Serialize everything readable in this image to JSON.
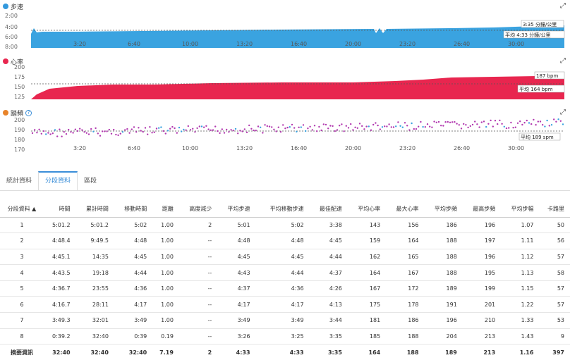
{
  "charts": {
    "pace": {
      "title": "步速",
      "color": "#3399dd",
      "y_ticks": [
        "2:00",
        "4:00",
        "6:00",
        "8:00"
      ],
      "current": "3:35 分鐘/公里",
      "average": "平均 4:33 分鐘/公里"
    },
    "heart_rate": {
      "title": "心率",
      "color": "#e8264f",
      "y_ticks": [
        "200",
        "175",
        "150",
        "125"
      ],
      "current": "187 bpm",
      "average": "平均 164 bpm"
    },
    "cadence": {
      "title": "踏頻",
      "color": "#e8842a",
      "y_ticks": [
        "200",
        "190",
        "180",
        "170"
      ],
      "average": "平均 189 spm"
    },
    "x_ticks": [
      "3:20",
      "6:40",
      "10:00",
      "13:20",
      "16:40",
      "20:00",
      "23:20",
      "26:40",
      "30:00"
    ],
    "help_icon": "?"
  },
  "tabs": [
    {
      "label": "統計資料",
      "active": false
    },
    {
      "label": "分段資料",
      "active": true
    },
    {
      "label": "區段",
      "active": false
    }
  ],
  "table": {
    "headers": [
      "分段資料 ▲",
      "時間",
      "累計時間",
      "移動時間",
      "距離",
      "高度減少",
      "平均步速",
      "平均移動步速",
      "最佳配速",
      "平均心率",
      "最大心率",
      "平均步頻",
      "最高步頻",
      "平均步幅",
      "卡路里"
    ],
    "rows": [
      [
        "1",
        "5:01.2",
        "5:01.2",
        "5:02",
        "1.00",
        "2",
        "5:01",
        "5:02",
        "3:38",
        "143",
        "156",
        "186",
        "196",
        "1.07",
        "50"
      ],
      [
        "2",
        "4:48.4",
        "9:49.5",
        "4:48",
        "1.00",
        "--",
        "4:48",
        "4:48",
        "4:45",
        "159",
        "164",
        "188",
        "197",
        "1.11",
        "56"
      ],
      [
        "3",
        "4:45.1",
        "14:35",
        "4:45",
        "1.00",
        "--",
        "4:45",
        "4:45",
        "4:44",
        "162",
        "165",
        "188",
        "196",
        "1.12",
        "57"
      ],
      [
        "4",
        "4:43.5",
        "19:18",
        "4:44",
        "1.00",
        "--",
        "4:43",
        "4:44",
        "4:37",
        "164",
        "167",
        "188",
        "195",
        "1.13",
        "58"
      ],
      [
        "5",
        "4:36.7",
        "23:55",
        "4:36",
        "1.00",
        "--",
        "4:37",
        "4:36",
        "4:26",
        "167",
        "172",
        "189",
        "199",
        "1.15",
        "57"
      ],
      [
        "6",
        "4:16.7",
        "28:11",
        "4:17",
        "1.00",
        "--",
        "4:17",
        "4:17",
        "4:13",
        "175",
        "178",
        "191",
        "201",
        "1.22",
        "57"
      ],
      [
        "7",
        "3:49.3",
        "32:01",
        "3:49",
        "1.00",
        "--",
        "3:49",
        "3:49",
        "3:44",
        "181",
        "186",
        "196",
        "210",
        "1.33",
        "53"
      ],
      [
        "8",
        "0:39.2",
        "32:40",
        "0:39",
        "0.19",
        "--",
        "3:26",
        "3:25",
        "3:35",
        "185",
        "188",
        "204",
        "213",
        "1.43",
        "9"
      ]
    ],
    "summary": [
      "摘要資訊",
      "32:40",
      "32:40",
      "32:40",
      "7.19",
      "2",
      "4:33",
      "4:33",
      "3:35",
      "164",
      "188",
      "189",
      "213",
      "1.16",
      "397"
    ]
  }
}
